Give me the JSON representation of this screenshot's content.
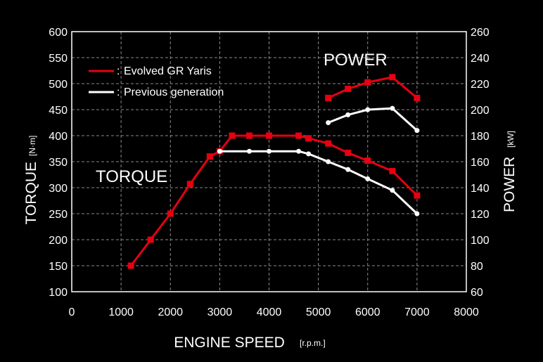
{
  "chart_data": {
    "type": "line",
    "xlabel": "ENGINE SPEED",
    "xlabel_unit": "[r.p.m.]",
    "ylabel_left": "TORQUE",
    "ylabel_left_unit": "[N·m]",
    "ylabel_right": "POWER",
    "ylabel_right_unit": "[kW]",
    "xlim": [
      0,
      8000
    ],
    "ylim_left": [
      100,
      600
    ],
    "ylim_right": [
      60,
      260
    ],
    "xticks": [
      "0",
      "1000",
      "2000",
      "3000",
      "4000",
      "5000",
      "6000",
      "7000",
      "8000"
    ],
    "yticks_left": [
      "100",
      "150",
      "200",
      "250",
      "300",
      "350",
      "400",
      "450",
      "500",
      "550",
      "600"
    ],
    "yticks_right": [
      "60",
      "80",
      "100",
      "120",
      "140",
      "160",
      "180",
      "200",
      "220",
      "240",
      "260"
    ],
    "grid": true,
    "legend_placement": "top-left",
    "annotations": {
      "torque": "TORQUE",
      "power": "POWER"
    },
    "legend": [
      {
        "label": "Evolved GR Yaris",
        "color": "#e60012"
      },
      {
        "label": "Previous generation",
        "color": "#ffffff"
      }
    ],
    "legend_separator": ":",
    "series": [
      {
        "group": "torque",
        "axis": "left",
        "color": "#e60012",
        "marker": "square",
        "x": [
          1200,
          1600,
          2000,
          2400,
          2800,
          3000,
          3250,
          3600,
          4000,
          4600,
          4800,
          5200,
          5600,
          6000,
          6500,
          7000
        ],
        "y": [
          150,
          200,
          250,
          307,
          360,
          370,
          400,
          400,
          400,
          400,
          395,
          385,
          367,
          352,
          332,
          285
        ]
      },
      {
        "group": "torque",
        "axis": "left",
        "color": "#ffffff",
        "marker": "dot",
        "x": [
          3000,
          3600,
          4000,
          4600,
          4800,
          5200,
          5600,
          6000,
          6500,
          7000
        ],
        "y": [
          370,
          370,
          370,
          370,
          365,
          350,
          335,
          317,
          295,
          250
        ]
      },
      {
        "group": "power",
        "axis": "right",
        "color": "#e60012",
        "marker": "square",
        "x": [
          5200,
          5600,
          6000,
          6500,
          7000
        ],
        "y": [
          209,
          216,
          221,
          225,
          209
        ]
      },
      {
        "group": "power",
        "axis": "right",
        "color": "#ffffff",
        "marker": "dot",
        "x": [
          5200,
          5600,
          6000,
          6500,
          7000
        ],
        "y": [
          190,
          196,
          200,
          201,
          184
        ]
      }
    ]
  }
}
